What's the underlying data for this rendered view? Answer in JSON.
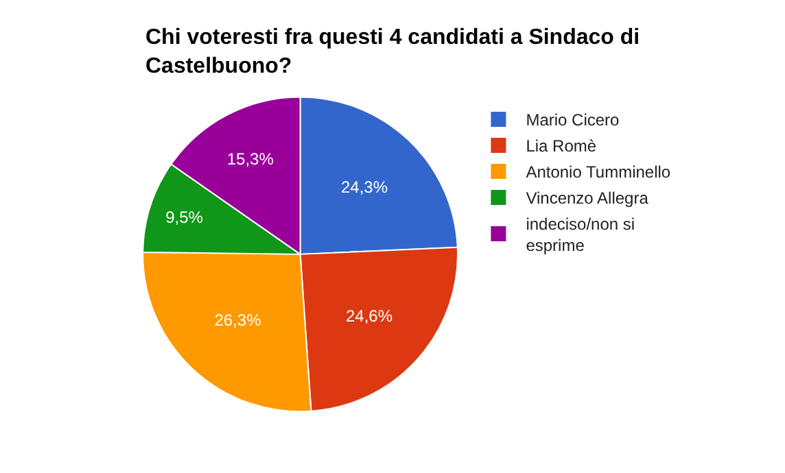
{
  "chart_data": {
    "type": "pie",
    "title": "Chi voteresti fra questi 4 candidati a Sindaco di Castelbuono?",
    "categories": [
      "Mario Cicero",
      "Lia Romè",
      "Antonio Tumminello",
      "Vincenzo Allegra",
      "indeciso/non si esprime"
    ],
    "values": [
      24.3,
      24.6,
      26.3,
      9.5,
      15.3
    ],
    "value_labels": [
      "24,3%",
      "24,6%",
      "26,3%",
      "9,5%",
      "15,3%"
    ],
    "colors": [
      "#3366cc",
      "#dc3912",
      "#ff9900",
      "#109618",
      "#990099"
    ],
    "legend": "right"
  }
}
